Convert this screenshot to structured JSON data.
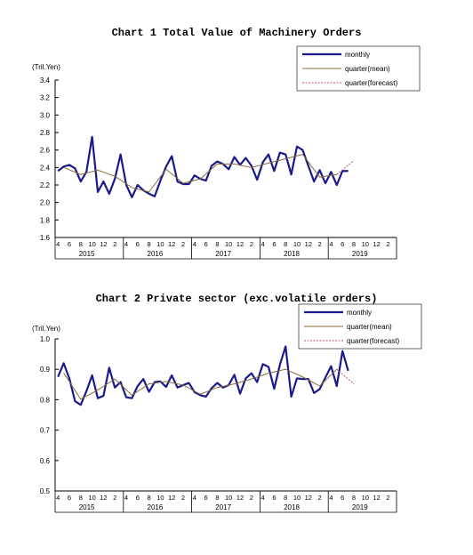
{
  "chart_data": [
    {
      "type": "line",
      "title": "Chart 1 Total Value of Machinery Orders",
      "unit_label": "(Tril.Yen)",
      "ylim": [
        1.6,
        3.4
      ],
      "yticks": [
        "1.6",
        "1.8",
        "2.0",
        "2.2",
        "2.4",
        "2.6",
        "2.8",
        "3.0",
        "3.2",
        "3.4"
      ],
      "month_ticks": [
        "4",
        "6",
        "8",
        "10",
        "12",
        "2",
        "4",
        "6",
        "8",
        "10",
        "12",
        "2",
        "4",
        "6",
        "8",
        "10",
        "12",
        "2",
        "4",
        "6",
        "8",
        "10",
        "12",
        "2",
        "4",
        "6",
        "8",
        "10",
        "12",
        "2"
      ],
      "years": [
        "2015",
        "2016",
        "2017",
        "2018",
        "2019"
      ],
      "legend": [
        "monthly",
        "quarter(mean)",
        "quarter(forecast)"
      ],
      "legend_position": "top-right",
      "series": [
        {
          "name": "monthly",
          "color": "#1a1a8c",
          "values": [
            2.36,
            2.41,
            2.43,
            2.39,
            2.24,
            2.35,
            2.75,
            2.12,
            2.24,
            2.1,
            2.27,
            2.55,
            2.2,
            2.06,
            2.2,
            2.14,
            2.1,
            2.07,
            2.25,
            2.41,
            2.53,
            2.24,
            2.21,
            2.21,
            2.31,
            2.27,
            2.25,
            2.42,
            2.47,
            2.44,
            2.38,
            2.52,
            2.43,
            2.51,
            2.42,
            2.26,
            2.46,
            2.55,
            2.36,
            2.57,
            2.55,
            2.32,
            2.64,
            2.6,
            2.42,
            2.24,
            2.37,
            2.22,
            2.35,
            2.2,
            2.36,
            2.36
          ]
        },
        {
          "name": "quarter(mean)",
          "color": "#8b6b3a",
          "x": [
            1,
            4,
            7,
            10,
            13,
            16,
            19,
            22,
            25,
            28,
            31,
            34,
            37,
            40,
            43,
            46,
            49
          ],
          "values": [
            2.4,
            2.32,
            2.37,
            2.3,
            2.17,
            2.12,
            2.38,
            2.22,
            2.27,
            2.44,
            2.44,
            2.4,
            2.45,
            2.5,
            2.55,
            2.29,
            2.32
          ]
        },
        {
          "name": "quarter(forecast)",
          "color": "#c0506a",
          "x": [
            49,
            52
          ],
          "values": [
            2.32,
            2.48
          ]
        }
      ]
    },
    {
      "type": "line",
      "title": "Chart 2 Private sector (exc.volatile orders)",
      "unit_label": "(Tril.Yen)",
      "ylim": [
        0.5,
        1.0
      ],
      "yticks": [
        "0.5",
        "0.6",
        "0.7",
        "0.8",
        "0.9",
        "1.0"
      ],
      "month_ticks": [
        "4",
        "6",
        "8",
        "10",
        "12",
        "2",
        "4",
        "6",
        "8",
        "10",
        "12",
        "2",
        "4",
        "6",
        "8",
        "10",
        "12",
        "2",
        "4",
        "6",
        "8",
        "10",
        "12",
        "2",
        "4",
        "6",
        "8",
        "10",
        "12",
        "2"
      ],
      "years": [
        "2015",
        "2016",
        "2017",
        "2018",
        "2019"
      ],
      "legend": [
        "monthly",
        "quarter(mean)",
        "quarter(forecast)"
      ],
      "legend_position": "top-right",
      "series": [
        {
          "name": "monthly",
          "color": "#1a1a8c",
          "values": [
            0.875,
            0.92,
            0.87,
            0.795,
            0.783,
            0.828,
            0.88,
            0.805,
            0.813,
            0.905,
            0.84,
            0.858,
            0.808,
            0.805,
            0.845,
            0.868,
            0.826,
            0.858,
            0.86,
            0.842,
            0.88,
            0.84,
            0.848,
            0.855,
            0.825,
            0.815,
            0.81,
            0.838,
            0.855,
            0.84,
            0.848,
            0.882,
            0.82,
            0.87,
            0.887,
            0.858,
            0.917,
            0.908,
            0.836,
            0.915,
            0.975,
            0.81,
            0.87,
            0.868,
            0.868,
            0.822,
            0.835,
            0.873,
            0.91,
            0.845,
            0.96,
            0.895
          ]
        },
        {
          "name": "quarter(mean)",
          "color": "#8b6b3a",
          "x": [
            1,
            4,
            7,
            10,
            13,
            16,
            19,
            22,
            25,
            28,
            31,
            34,
            37,
            40,
            43,
            46,
            49
          ],
          "values": [
            0.888,
            0.802,
            0.832,
            0.868,
            0.815,
            0.852,
            0.86,
            0.848,
            0.818,
            0.84,
            0.852,
            0.868,
            0.887,
            0.9,
            0.875,
            0.845,
            0.9
          ]
        },
        {
          "name": "quarter(forecast)",
          "color": "#c0506a",
          "x": [
            49,
            52
          ],
          "values": [
            0.9,
            0.852
          ]
        }
      ]
    }
  ]
}
